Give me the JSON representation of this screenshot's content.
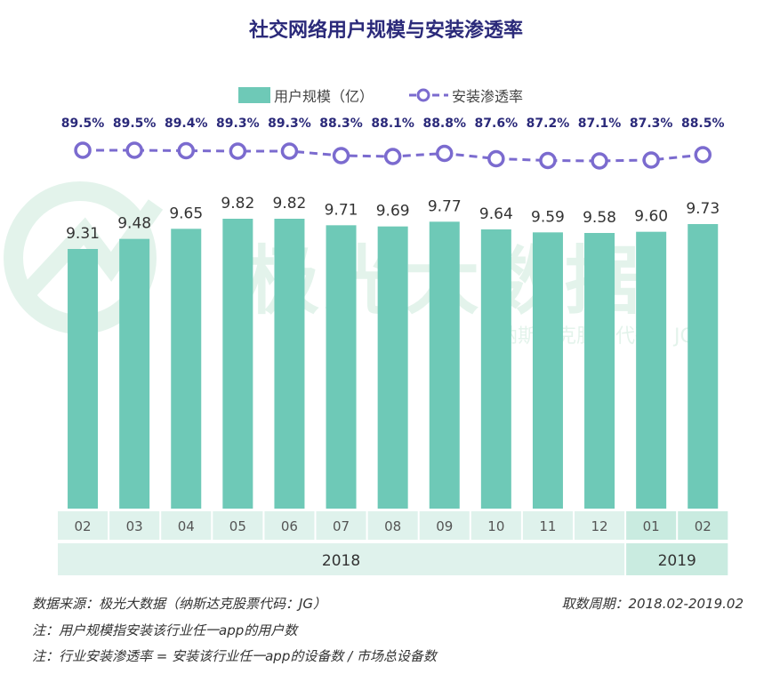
{
  "chart_data": {
    "type": "bar",
    "title": "社交网络用户规模与安装渗透率",
    "categories": [
      "02",
      "03",
      "04",
      "05",
      "06",
      "07",
      "08",
      "09",
      "10",
      "11",
      "12",
      "01",
      "02"
    ],
    "year_groups": [
      {
        "label": "2018",
        "start": 0,
        "end": 10
      },
      {
        "label": "2019",
        "start": 11,
        "end": 12
      }
    ],
    "series": [
      {
        "name": "用户规模（亿）",
        "type": "bar",
        "values": [
          9.31,
          9.48,
          9.65,
          9.82,
          9.82,
          9.71,
          9.69,
          9.77,
          9.64,
          9.59,
          9.58,
          9.6,
          9.73
        ]
      },
      {
        "name": "安装渗透率",
        "type": "line",
        "values": [
          89.5,
          89.5,
          89.4,
          89.3,
          89.3,
          88.3,
          88.1,
          88.8,
          87.6,
          87.2,
          87.1,
          87.3,
          88.5
        ],
        "label_suffix": "%"
      }
    ],
    "colors": {
      "bar": "#6ec9b7",
      "line": "#7b6bcf",
      "title": "#2b2a7a",
      "axis_band": "#dff2ec",
      "axis_band_2019": "#c9ebe0"
    }
  },
  "watermark": {
    "text": "极光大数据",
    "subtext": "纳斯达克股票代码：JG"
  },
  "footer": {
    "source": "数据来源：极光大数据（纳斯达克股票代码：JG）",
    "period": "取数周期：2018.02-2019.02",
    "note1": "注：用户规模指安装该行业任一app的用户数",
    "note2": "注：行业安装渗透率 = 安装该行业任一app的设备数 / 市场总设备数"
  }
}
